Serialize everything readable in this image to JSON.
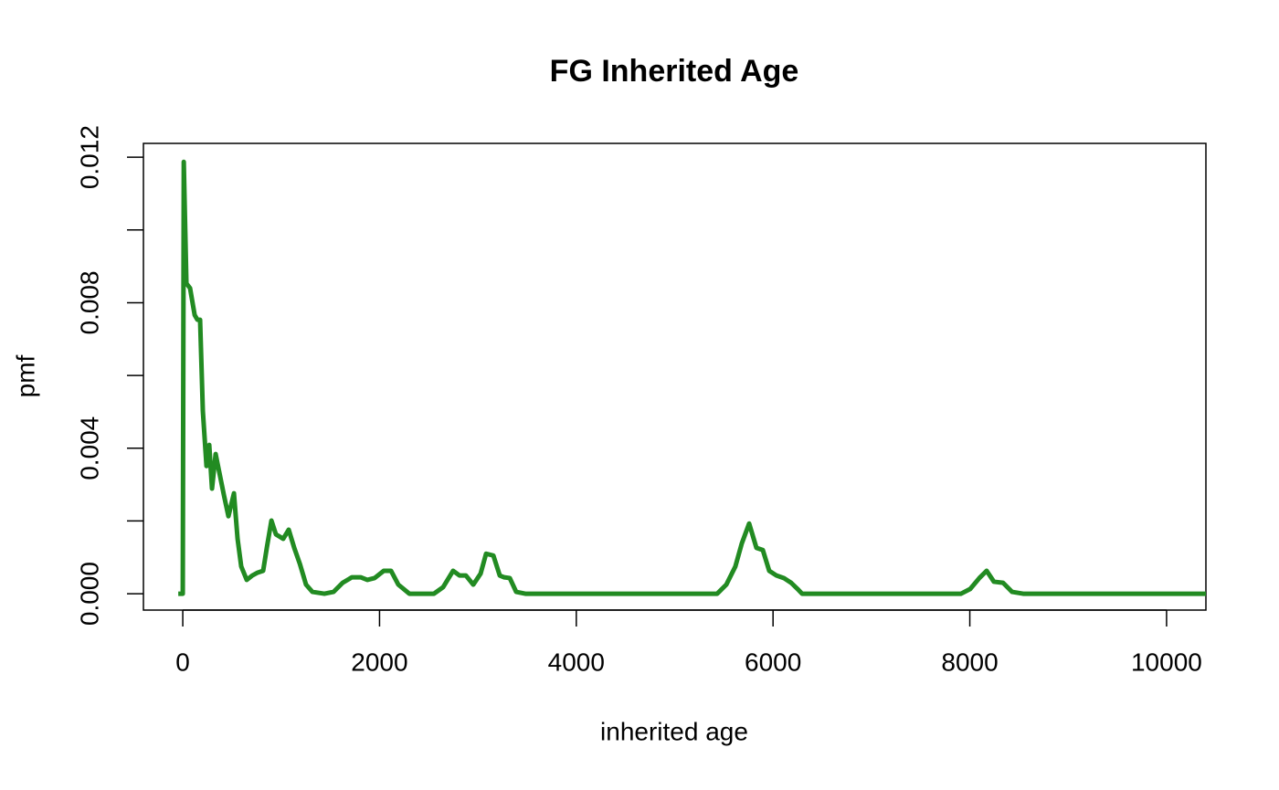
{
  "chart_data": {
    "type": "line",
    "title": "FG Inherited Age",
    "x_label": "inherited age",
    "y_label": "pmf",
    "x": [
      -46,
      0,
      10,
      37,
      74,
      121,
      149,
      176,
      204,
      241,
      269,
      297,
      334,
      371,
      418,
      464,
      520,
      557,
      594,
      650,
      706,
      761,
      817,
      854,
      901,
      947,
      1021,
      1077,
      1133,
      1189,
      1253,
      1318,
      1439,
      1532,
      1625,
      1718,
      1811,
      1876,
      1950,
      2043,
      2117,
      2191,
      2303,
      2553,
      2646,
      2748,
      2813,
      2878,
      2953,
      3027,
      3083,
      3157,
      3222,
      3268,
      3324,
      3389,
      3482,
      5432,
      5525,
      5617,
      5682,
      5757,
      5831,
      5896,
      5961,
      6035,
      6110,
      6184,
      6249,
      6295,
      7911,
      8004,
      8097,
      8171,
      8245,
      8338,
      8430,
      8542,
      10400
    ],
    "values": [
      0,
      0,
      0.01187,
      0.00853,
      0.0084,
      0.00766,
      0.00753,
      0.00753,
      0.00502,
      0.00351,
      0.00409,
      0.00289,
      0.00384,
      0.00334,
      0.00271,
      0.00213,
      0.00276,
      0.00151,
      0.00075,
      0.00038,
      0.0005,
      0.00058,
      0.00063,
      0.00126,
      0.00201,
      0.00163,
      0.00151,
      0.00176,
      0.00126,
      0.00083,
      0.00025,
      5e-05,
      0,
      5e-05,
      0.0003,
      0.00045,
      0.00045,
      0.00038,
      0.00043,
      0.00063,
      0.00063,
      0.00025,
      0,
      0,
      0.00018,
      0.00063,
      0.0005,
      0.0005,
      0.00025,
      0.00055,
      0.0011,
      0.00105,
      0.0005,
      0.00045,
      0.00043,
      5e-05,
      0,
      0,
      0.00025,
      0.00075,
      0.00138,
      0.00193,
      0.00126,
      0.0012,
      0.00063,
      0.0005,
      0.00043,
      0.0003,
      0.00013,
      0,
      0,
      0.00013,
      0.00043,
      0.00063,
      0.00033,
      0.0003,
      5e-05,
      0,
      0
    ],
    "color": "#228b22",
    "xlim": [
      -400,
      10400
    ],
    "xticks": [
      0,
      2000,
      4000,
      6000,
      8000,
      10000
    ],
    "ylim": [
      -0.00045,
      0.01238
    ],
    "yticks": [
      {
        "value": 0,
        "label": "0.000"
      },
      {
        "value": 0.004,
        "label": "0.004"
      },
      {
        "value": 0.008,
        "label": "0.008"
      },
      {
        "value": 0.012,
        "label": "0.012"
      }
    ],
    "yminor_ticks": [
      0.002,
      0.006,
      0.01
    ]
  }
}
